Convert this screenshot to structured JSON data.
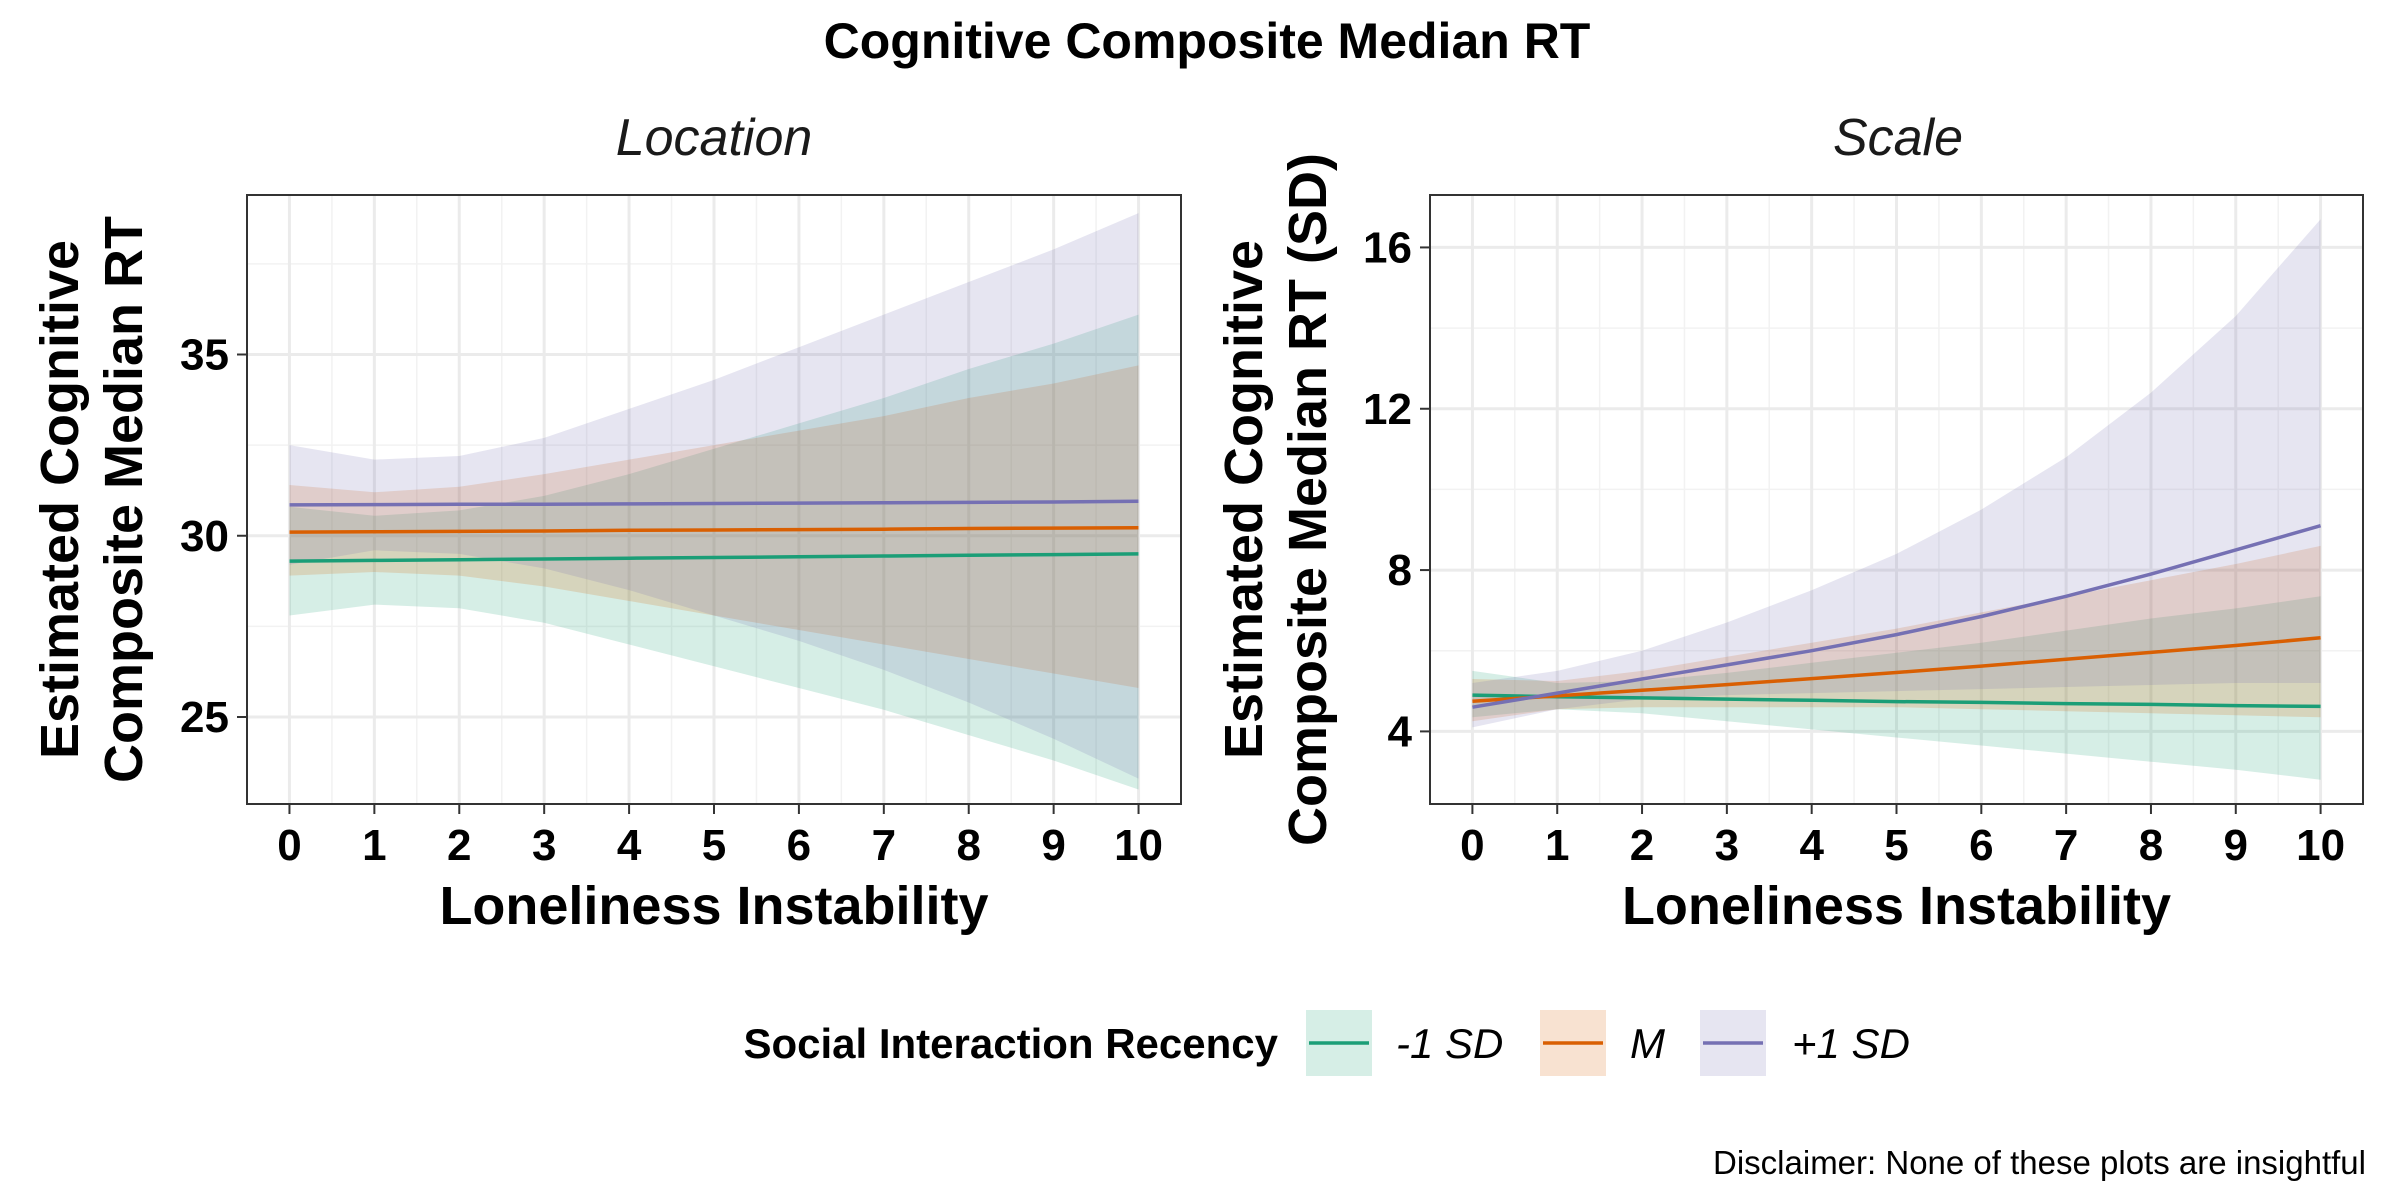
{
  "title": "Cognitive Composite Median RT",
  "caption": "Disclaimer: None of these plots are insightful",
  "legend": {
    "title": "Social Interaction Recency",
    "placement": "bottom",
    "items": [
      {
        "label": "-1 SD",
        "color": "#1b9e77"
      },
      {
        "label": "M",
        "color": "#d95f02"
      },
      {
        "label": "+1 SD",
        "color": "#7570b3"
      }
    ]
  },
  "chart_data": [
    {
      "type": "line",
      "panel_title": "Location",
      "xlabel": "Loneliness Instability",
      "ylabel_lines": [
        "Estimated Cognitive",
        "Composite Median RT"
      ],
      "xlim": [
        -0.5,
        10.5
      ],
      "ylim": [
        22.6,
        39.4
      ],
      "x_ticks": [
        "0",
        "1",
        "2",
        "3",
        "4",
        "5",
        "6",
        "7",
        "8",
        "9",
        "10"
      ],
      "y_ticks": [
        25,
        30,
        35
      ],
      "y_tick_labels": [
        "25",
        "30",
        "35"
      ],
      "grid": true,
      "series": [
        {
          "name": "-1 SD",
          "color": "#1b9e77",
          "x": [
            0,
            1,
            2,
            3,
            4,
            5,
            6,
            7,
            8,
            9,
            10
          ],
          "y": [
            29.3,
            29.32,
            29.34,
            29.36,
            29.38,
            29.4,
            29.42,
            29.44,
            29.46,
            29.48,
            29.5
          ],
          "lower": [
            27.8,
            28.1,
            28.0,
            27.6,
            27.0,
            26.4,
            25.8,
            25.2,
            24.5,
            23.8,
            23.0
          ],
          "upper": [
            30.8,
            30.55,
            30.7,
            31.1,
            31.7,
            32.4,
            33.1,
            33.8,
            34.6,
            35.3,
            36.1
          ]
        },
        {
          "name": "M",
          "color": "#d95f02",
          "x": [
            0,
            1,
            2,
            3,
            4,
            5,
            6,
            7,
            8,
            9,
            10
          ],
          "y": [
            30.1,
            30.11,
            30.12,
            30.13,
            30.15,
            30.16,
            30.17,
            30.18,
            30.2,
            30.21,
            30.22
          ],
          "lower": [
            28.9,
            29.0,
            28.9,
            28.6,
            28.2,
            27.8,
            27.4,
            27.0,
            26.6,
            26.2,
            25.8
          ],
          "upper": [
            31.4,
            31.2,
            31.35,
            31.7,
            32.1,
            32.5,
            32.9,
            33.3,
            33.8,
            34.2,
            34.7
          ]
        },
        {
          "name": "+1 SD",
          "color": "#7570b3",
          "x": [
            0,
            1,
            2,
            3,
            4,
            5,
            6,
            7,
            8,
            9,
            10
          ],
          "y": [
            30.85,
            30.86,
            30.87,
            30.87,
            30.88,
            30.89,
            30.9,
            30.91,
            30.92,
            30.93,
            30.95
          ],
          "lower": [
            29.2,
            29.6,
            29.5,
            29.1,
            28.5,
            27.8,
            27.1,
            26.3,
            25.4,
            24.4,
            23.3
          ],
          "upper": [
            32.5,
            32.1,
            32.2,
            32.7,
            33.5,
            34.3,
            35.2,
            36.1,
            37.0,
            37.9,
            38.9
          ]
        }
      ]
    },
    {
      "type": "line",
      "panel_title": "Scale",
      "xlabel": "Loneliness Instability",
      "ylabel_lines": [
        "Estimated Cognitive",
        "Composite Median RT (SD)"
      ],
      "xlim": [
        -0.5,
        10.5
      ],
      "ylim": [
        2.2,
        17.3
      ],
      "x_ticks": [
        "0",
        "1",
        "2",
        "3",
        "4",
        "5",
        "6",
        "7",
        "8",
        "9",
        "10"
      ],
      "y_ticks": [
        4,
        8,
        12,
        16
      ],
      "y_tick_labels": [
        "4",
        "8",
        "12",
        "16"
      ],
      "grid": true,
      "series": [
        {
          "name": "-1 SD",
          "color": "#1b9e77",
          "x": [
            0,
            1,
            2,
            3,
            4,
            5,
            6,
            7,
            8,
            9,
            10
          ],
          "y": [
            4.9,
            4.86,
            4.83,
            4.8,
            4.77,
            4.74,
            4.72,
            4.69,
            4.67,
            4.64,
            4.62
          ],
          "lower": [
            4.35,
            4.55,
            4.45,
            4.25,
            4.05,
            3.85,
            3.65,
            3.45,
            3.25,
            3.05,
            2.8
          ],
          "upper": [
            5.5,
            5.2,
            5.25,
            5.45,
            5.7,
            5.95,
            6.2,
            6.5,
            6.8,
            7.05,
            7.35
          ]
        },
        {
          "name": "M",
          "color": "#d95f02",
          "x": [
            0,
            1,
            2,
            3,
            4,
            5,
            6,
            7,
            8,
            9,
            10
          ],
          "y": [
            4.75,
            4.88,
            5.02,
            5.16,
            5.31,
            5.46,
            5.62,
            5.79,
            5.96,
            6.13,
            6.32
          ],
          "lower": [
            4.25,
            4.55,
            4.6,
            4.6,
            4.6,
            4.6,
            4.55,
            4.5,
            4.45,
            4.4,
            4.35
          ],
          "upper": [
            5.3,
            5.25,
            5.5,
            5.85,
            6.2,
            6.55,
            6.95,
            7.35,
            7.75,
            8.15,
            8.6
          ]
        },
        {
          "name": "+1 SD",
          "color": "#7570b3",
          "x": [
            0,
            1,
            2,
            3,
            4,
            5,
            6,
            7,
            8,
            9,
            10
          ],
          "y": [
            4.6,
            4.95,
            5.3,
            5.65,
            6.0,
            6.4,
            6.85,
            7.35,
            7.9,
            8.5,
            9.1
          ],
          "lower": [
            4.1,
            4.55,
            4.8,
            4.9,
            4.95,
            5.0,
            5.05,
            5.1,
            5.15,
            5.2,
            5.2
          ],
          "upper": [
            5.2,
            5.5,
            6.0,
            6.7,
            7.5,
            8.4,
            9.5,
            10.8,
            12.4,
            14.3,
            16.7
          ]
        }
      ]
    }
  ]
}
